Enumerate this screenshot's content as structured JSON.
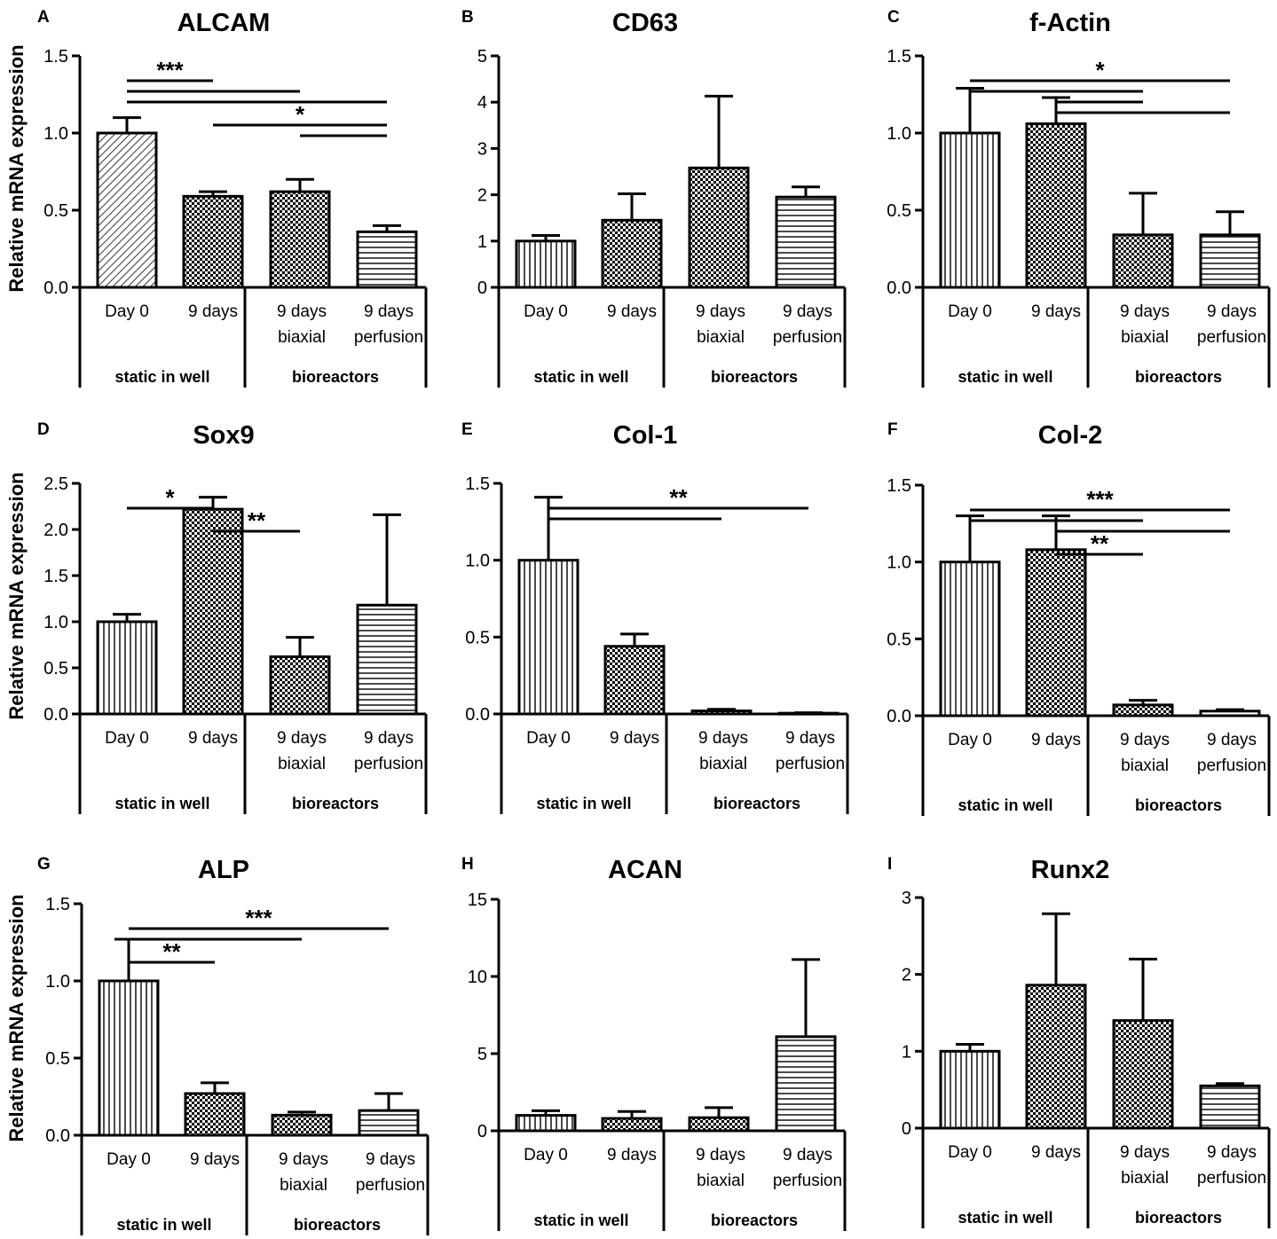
{
  "figure": {
    "ylabel": "Relative mRNA expression",
    "categories": [
      [
        "Day 0"
      ],
      [
        "9 days"
      ],
      [
        "9 days",
        "biaxial"
      ],
      [
        "9 days",
        "perfusion"
      ]
    ],
    "groups": [
      {
        "label": "static in well",
        "span": [
          0,
          1
        ]
      },
      {
        "label": "bioreactors",
        "span": [
          2,
          3
        ]
      }
    ],
    "patterns": [
      "diag",
      "check",
      "check",
      "horiz"
    ]
  },
  "chart_data": [
    {
      "type": "bar",
      "letter": "A",
      "title": "ALCAM",
      "ylim": [
        0,
        1.5
      ],
      "yticks": [
        "0.0",
        "0.5",
        "1.0",
        "1.5"
      ],
      "values": [
        1.0,
        0.59,
        0.62,
        0.36
      ],
      "errors": [
        0.1,
        0.03,
        0.08,
        0.04
      ],
      "patterns": [
        "diag",
        "check",
        "check",
        "horiz"
      ],
      "significance": [
        {
          "label": "***",
          "lines": [
            [
              0,
              1
            ],
            [
              0,
              2
            ],
            [
              0,
              3
            ]
          ]
        },
        {
          "label": "*",
          "lines": [
            [
              1,
              3
            ],
            [
              2,
              3
            ]
          ]
        }
      ]
    },
    {
      "type": "bar",
      "letter": "B",
      "title": "CD63",
      "ylim": [
        0,
        5
      ],
      "yticks": [
        "0",
        "1",
        "2",
        "3",
        "4",
        "5"
      ],
      "values": [
        1.0,
        1.45,
        2.58,
        1.95
      ],
      "errors": [
        0.12,
        0.57,
        1.55,
        0.22
      ],
      "patterns": [
        "vert",
        "check",
        "check",
        "horiz"
      ],
      "significance": []
    },
    {
      "type": "bar",
      "letter": "C",
      "title": "f-Actin",
      "ylim": [
        0,
        1.5
      ],
      "yticks": [
        "0.0",
        "0.5",
        "1.0",
        "1.5"
      ],
      "values": [
        1.0,
        1.06,
        0.34,
        0.34
      ],
      "errors": [
        0.29,
        0.17,
        0.27,
        0.15
      ],
      "patterns": [
        "vert",
        "check",
        "check",
        "horiz"
      ],
      "significance": [
        {
          "label": "*",
          "lines": [
            [
              0,
              3
            ],
            [
              0,
              2
            ],
            [
              1,
              2
            ],
            [
              1,
              3
            ]
          ]
        }
      ]
    },
    {
      "type": "bar",
      "letter": "D",
      "title": "Sox9",
      "ylim": [
        0,
        2.5
      ],
      "yticks": [
        "0.0",
        "0.5",
        "1.0",
        "1.5",
        "2.0",
        "2.5"
      ],
      "values": [
        1.0,
        2.22,
        0.62,
        1.18
      ],
      "errors": [
        0.08,
        0.13,
        0.21,
        0.98
      ],
      "patterns": [
        "vert",
        "check",
        "check",
        "horiz"
      ],
      "significance": [
        {
          "label": "*",
          "lines": [
            [
              0,
              1
            ]
          ]
        },
        {
          "label": "**",
          "lines": [
            [
              1,
              2
            ]
          ]
        }
      ]
    },
    {
      "type": "bar",
      "letter": "E",
      "title": "Col-1",
      "ylim": [
        0,
        1.5
      ],
      "yticks": [
        "0.0",
        "0.5",
        "1.0",
        "1.5"
      ],
      "values": [
        1.0,
        0.44,
        0.02,
        0.005
      ],
      "errors": [
        0.41,
        0.08,
        0.01,
        0.003
      ],
      "patterns": [
        "vert",
        "check",
        "check",
        "horiz"
      ],
      "significance": [
        {
          "label": "**",
          "lines": [
            [
              0,
              3
            ],
            [
              0,
              2
            ]
          ]
        }
      ]
    },
    {
      "type": "bar",
      "letter": "F",
      "title": "Col-2",
      "ylim": [
        0,
        1.5
      ],
      "yticks": [
        "0.0",
        "0.5",
        "1.0",
        "1.5"
      ],
      "values": [
        1.0,
        1.08,
        0.07,
        0.03
      ],
      "errors": [
        0.3,
        0.22,
        0.03,
        0.01
      ],
      "patterns": [
        "vert",
        "check",
        "check",
        "horiz"
      ],
      "significance": [
        {
          "label": "***",
          "lines": [
            [
              0,
              3
            ],
            [
              0,
              2
            ],
            [
              1,
              3
            ]
          ]
        },
        {
          "label": "**",
          "lines": [
            [
              1,
              2
            ]
          ]
        }
      ]
    },
    {
      "type": "bar",
      "letter": "G",
      "title": "ALP",
      "ylim": [
        0,
        1.5
      ],
      "yticks": [
        "0.0",
        "0.5",
        "1.0",
        "1.5"
      ],
      "values": [
        1.0,
        0.27,
        0.13,
        0.16
      ],
      "errors": [
        0.27,
        0.07,
        0.02,
        0.11
      ],
      "patterns": [
        "vert",
        "check",
        "check",
        "horiz"
      ],
      "significance": [
        {
          "label": "***",
          "lines": [
            [
              0,
              3
            ],
            [
              0,
              2
            ]
          ]
        },
        {
          "label": "**",
          "lines": [
            [
              0,
              1
            ]
          ]
        }
      ]
    },
    {
      "type": "bar",
      "letter": "H",
      "title": "ACAN",
      "ylim": [
        0,
        15
      ],
      "yticks": [
        "0",
        "5",
        "10",
        "15"
      ],
      "values": [
        1.0,
        0.8,
        0.85,
        6.1
      ],
      "errors": [
        0.3,
        0.45,
        0.65,
        5.0
      ],
      "patterns": [
        "vert",
        "check",
        "check",
        "horiz"
      ],
      "significance": []
    },
    {
      "type": "bar",
      "letter": "I",
      "title": "Runx2",
      "ylim": [
        0,
        3
      ],
      "yticks": [
        "0",
        "1",
        "2",
        "3"
      ],
      "values": [
        1.0,
        1.86,
        1.4,
        0.55
      ],
      "errors": [
        0.09,
        0.93,
        0.8,
        0.03
      ],
      "patterns": [
        "vert",
        "check",
        "check",
        "horiz"
      ],
      "significance": []
    }
  ]
}
